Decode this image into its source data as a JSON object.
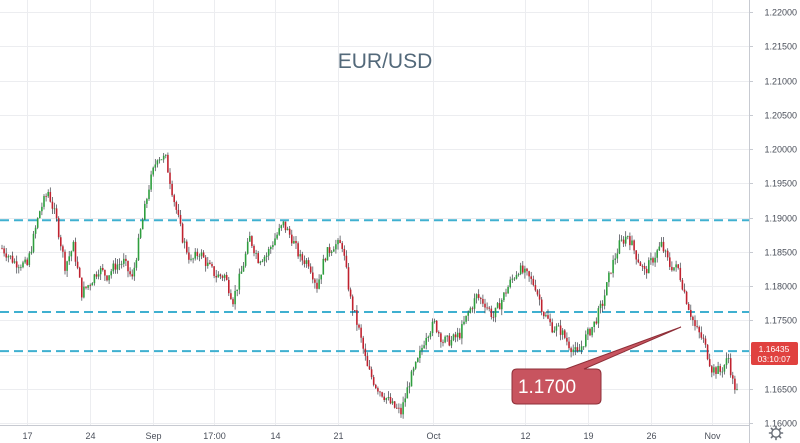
{
  "chart_data": {
    "type": "candlestick",
    "title": "EUR/USD",
    "colors": {
      "up": "#2e9e3e",
      "down": "#c0222f",
      "levels": "#3fb0d0",
      "callout_fill": "#c8545f",
      "price_tag": "#e0413f",
      "grid": "#ecedf0",
      "axis_text": "#4a4f5a",
      "title": "#53697a"
    },
    "grid": true,
    "y_axis": {
      "position": "right",
      "ylim": [
        1.1515,
        1.2235
      ],
      "ticks": [
        "1.22000",
        "1.21500",
        "1.21000",
        "1.20500",
        "1.20000",
        "1.19500",
        "1.19000",
        "1.18500",
        "1.18000",
        "1.17500",
        "1.17000",
        "1.16500",
        "1.16000",
        "1.15500"
      ]
    },
    "x_axis": {
      "bars_per_day": 6,
      "ticks": [
        {
          "label": "17",
          "bar": 12
        },
        {
          "label": "24",
          "bar": 42
        },
        {
          "label": "Sep",
          "bar": 72
        },
        {
          "label": "17:00",
          "bar": 101
        },
        {
          "label": "14",
          "bar": 130
        },
        {
          "label": "21",
          "bar": 160
        },
        {
          "label": "Oct",
          "bar": 205
        },
        {
          "label": "12",
          "bar": 249
        },
        {
          "label": "19",
          "bar": 279
        },
        {
          "label": "26",
          "bar": 309
        },
        {
          "label": "Nov",
          "bar": 338
        }
      ]
    },
    "levels": [
      1.1896,
      1.1762,
      1.1705
    ],
    "close_path": [
      [
        0,
        1.1855
      ],
      [
        6,
        1.1835
      ],
      [
        12,
        1.183
      ],
      [
        18,
        1.191
      ],
      [
        22,
        1.1938
      ],
      [
        26,
        1.1895
      ],
      [
        30,
        1.183
      ],
      [
        34,
        1.1858
      ],
      [
        38,
        1.179
      ],
      [
        42,
        1.1805
      ],
      [
        46,
        1.1825
      ],
      [
        50,
        1.1815
      ],
      [
        54,
        1.183
      ],
      [
        58,
        1.1835
      ],
      [
        62,
        1.181
      ],
      [
        66,
        1.188
      ],
      [
        70,
        1.1945
      ],
      [
        74,
        1.199
      ],
      [
        78,
        1.1985
      ],
      [
        82,
        1.1925
      ],
      [
        86,
        1.187
      ],
      [
        90,
        1.1835
      ],
      [
        94,
        1.185
      ],
      [
        98,
        1.183
      ],
      [
        102,
        1.1815
      ],
      [
        106,
        1.1815
      ],
      [
        110,
        1.178
      ],
      [
        114,
        1.182
      ],
      [
        118,
        1.187
      ],
      [
        122,
        1.184
      ],
      [
        126,
        1.1845
      ],
      [
        130,
        1.187
      ],
      [
        134,
        1.189
      ],
      [
        138,
        1.187
      ],
      [
        142,
        1.184
      ],
      [
        146,
        1.1835
      ],
      [
        150,
        1.18
      ],
      [
        154,
        1.1845
      ],
      [
        158,
        1.186
      ],
      [
        162,
        1.186
      ],
      [
        166,
        1.178
      ],
      [
        170,
        1.1735
      ],
      [
        174,
        1.168
      ],
      [
        178,
        1.1655
      ],
      [
        182,
        1.164
      ],
      [
        186,
        1.1625
      ],
      [
        190,
        1.1615
      ],
      [
        194,
        1.166
      ],
      [
        198,
        1.169
      ],
      [
        202,
        1.173
      ],
      [
        206,
        1.1745
      ],
      [
        210,
        1.172
      ],
      [
        214,
        1.172
      ],
      [
        218,
        1.173
      ],
      [
        222,
        1.176
      ],
      [
        226,
        1.1785
      ],
      [
        230,
        1.1775
      ],
      [
        234,
        1.1755
      ],
      [
        238,
        1.178
      ],
      [
        242,
        1.1805
      ],
      [
        246,
        1.1825
      ],
      [
        250,
        1.1815
      ],
      [
        254,
        1.18
      ],
      [
        258,
        1.176
      ],
      [
        262,
        1.174
      ],
      [
        266,
        1.1735
      ],
      [
        270,
        1.1715
      ],
      [
        274,
        1.17
      ],
      [
        278,
        1.1725
      ],
      [
        282,
        1.1745
      ],
      [
        286,
        1.1775
      ],
      [
        290,
        1.1825
      ],
      [
        294,
        1.186
      ],
      [
        298,
        1.1875
      ],
      [
        302,
        1.1845
      ],
      [
        306,
        1.182
      ],
      [
        310,
        1.184
      ],
      [
        314,
        1.186
      ],
      [
        318,
        1.183
      ],
      [
        322,
        1.1825
      ],
      [
        326,
        1.178
      ],
      [
        330,
        1.174
      ],
      [
        334,
        1.172
      ],
      [
        338,
        1.168
      ],
      [
        342,
        1.1675
      ],
      [
        346,
        1.1695
      ],
      [
        348,
        1.166
      ],
      [
        350,
        1.1645
      ]
    ],
    "last_price": "1.16435",
    "countdown": "03:10:07",
    "annotation": "1.1700"
  }
}
